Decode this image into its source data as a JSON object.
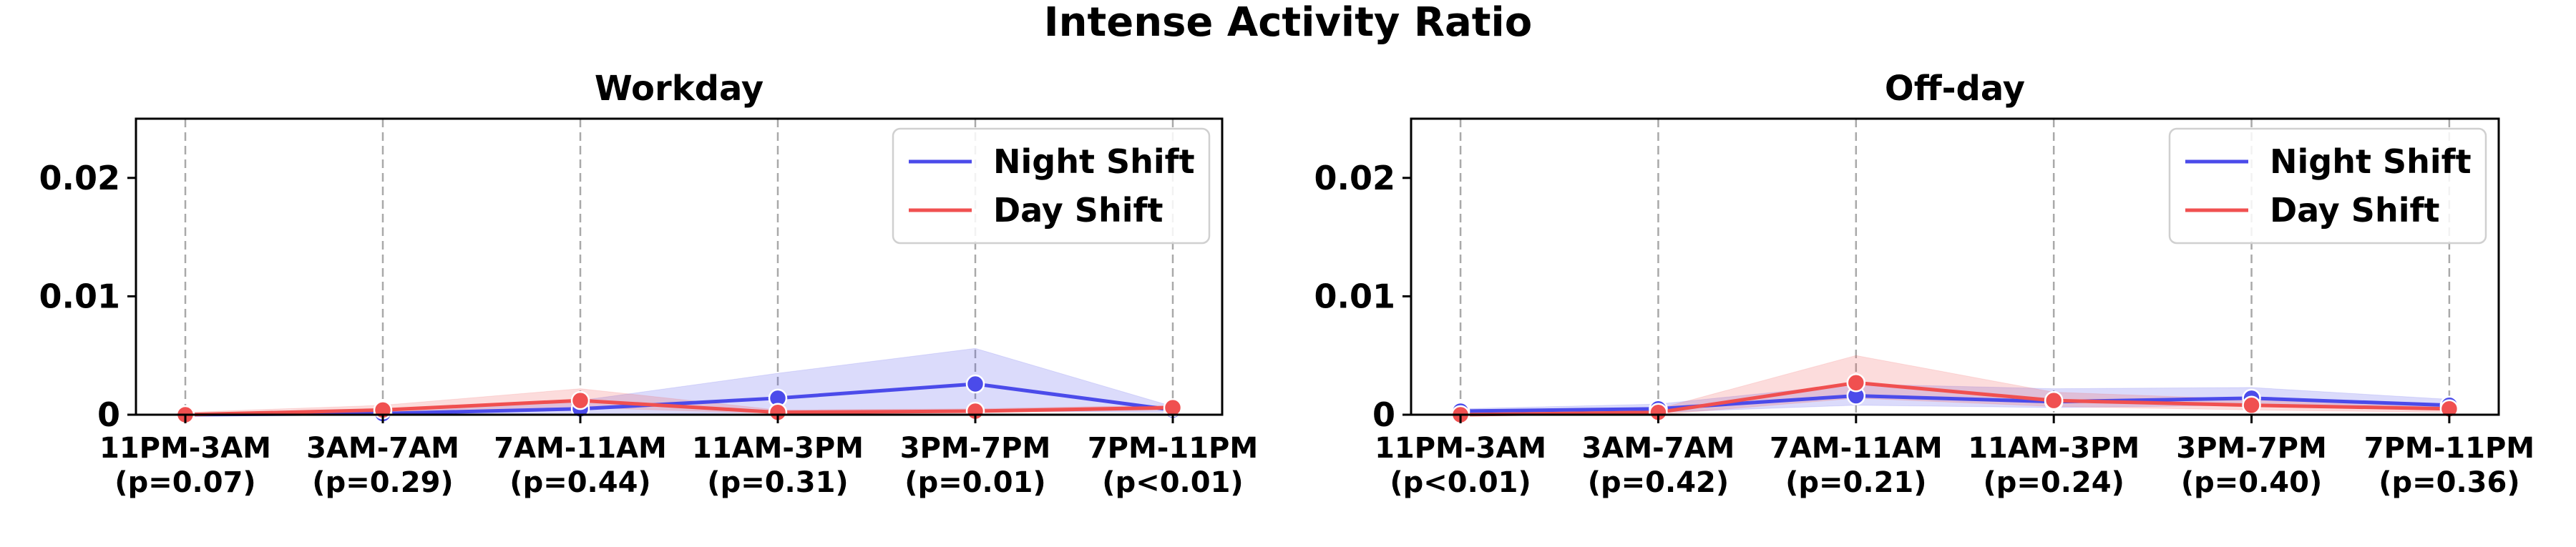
{
  "figure_title": "Intense Activity Ratio",
  "chart_data": [
    {
      "type": "line",
      "title": "Workday",
      "xlabel": "",
      "ylabel": "",
      "categories": [
        "11PM-3AM\n(p=0.07)",
        "3AM-7AM\n(p=0.29)",
        "7AM-11AM\n(p=0.44)",
        "11AM-3PM\n(p=0.31)",
        "3PM-7PM\n(p=0.01)",
        "7PM-11PM\n(p<0.01)"
      ],
      "ylim": [
        0,
        0.025
      ],
      "yticks": [
        0,
        0.01,
        0.02
      ],
      "ytick_labels": [
        "0",
        "0.01",
        "0.02"
      ],
      "grid": "vertical-dashed",
      "legend_position": "top-right",
      "series": [
        {
          "name": "Night Shift",
          "color": "#4b4bea",
          "values": [
            0.0,
            0.0001,
            0.0005,
            0.0014,
            0.0026,
            0.0004
          ],
          "band_low": [
            0.0,
            0.0,
            0.0,
            0.0002,
            0.0003,
            0.0002
          ],
          "band_high": [
            0.0001,
            0.0003,
            0.0012,
            0.0035,
            0.0056,
            0.0007
          ]
        },
        {
          "name": "Day Shift",
          "color": "#f05050",
          "values": [
            0.0,
            0.0004,
            0.0012,
            0.0002,
            0.0003,
            0.0006
          ],
          "band_low": [
            0.0,
            0.0002,
            0.0006,
            0.0001,
            0.0002,
            0.0004
          ],
          "band_high": [
            0.0002,
            0.0008,
            0.0022,
            0.0004,
            0.0005,
            0.0008
          ]
        }
      ]
    },
    {
      "type": "line",
      "title": "Off-day",
      "xlabel": "",
      "ylabel": "",
      "categories": [
        "11PM-3AM\n(p<0.01)",
        "3AM-7AM\n(p=0.42)",
        "7AM-11AM\n(p=0.21)",
        "11AM-3PM\n(p=0.24)",
        "3PM-7PM\n(p=0.40)",
        "7PM-11PM\n(p=0.36)"
      ],
      "ylim": [
        0,
        0.025
      ],
      "yticks": [
        0,
        0.01,
        0.02
      ],
      "ytick_labels": [
        "0",
        "0.01",
        "0.02"
      ],
      "grid": "vertical-dashed",
      "legend_position": "top-right",
      "series": [
        {
          "name": "Night Shift",
          "color": "#4b4bea",
          "values": [
            0.0003,
            0.0005,
            0.0016,
            0.0011,
            0.0014,
            0.0008
          ],
          "band_low": [
            0.0001,
            0.0002,
            0.0008,
            0.0006,
            0.0008,
            0.0004
          ],
          "band_high": [
            0.0005,
            0.0009,
            0.0026,
            0.0022,
            0.0023,
            0.0013
          ]
        },
        {
          "name": "Day Shift",
          "color": "#f05050",
          "values": [
            0.0,
            0.0002,
            0.0027,
            0.0012,
            0.0008,
            0.0005
          ],
          "band_low": [
            0.0,
            0.0,
            0.0014,
            0.0007,
            0.0004,
            0.0002
          ],
          "band_high": [
            0.0001,
            0.0005,
            0.005,
            0.0019,
            0.0013,
            0.0008
          ]
        }
      ]
    }
  ]
}
